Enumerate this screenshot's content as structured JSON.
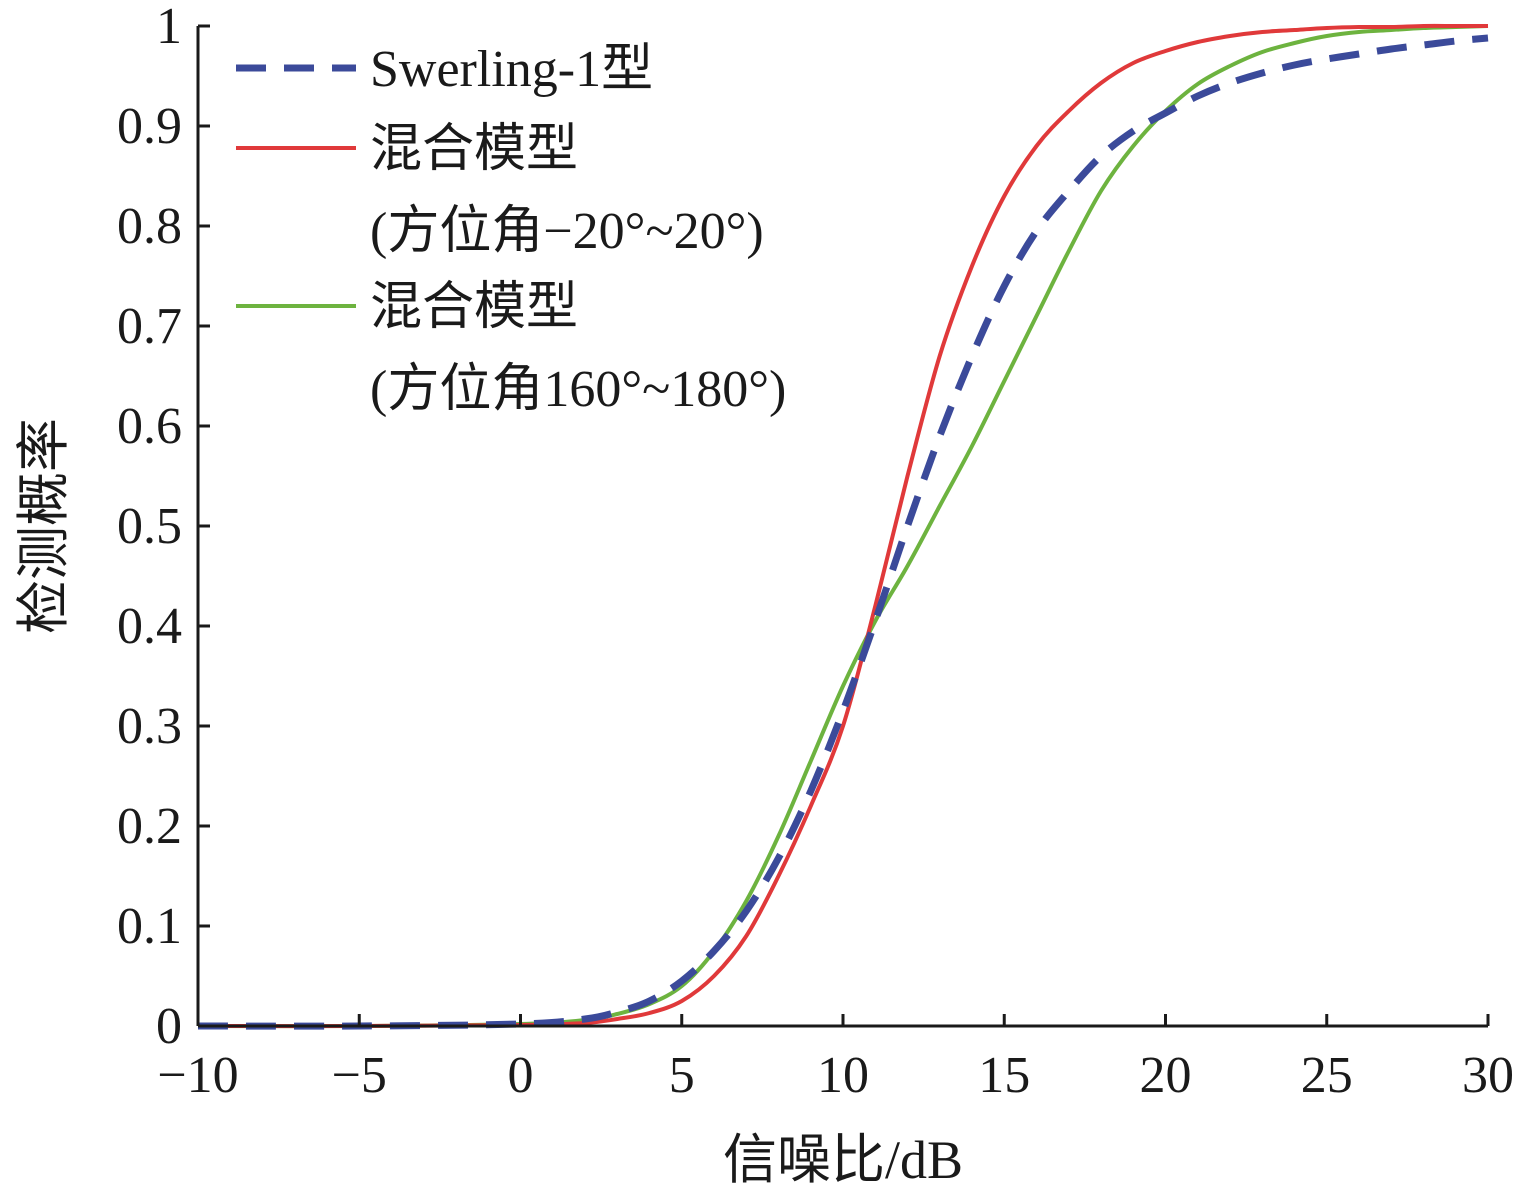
{
  "chart_data": {
    "type": "line",
    "title": "",
    "xlabel": "信噪比/dB",
    "ylabel": "检测概率",
    "xlim": [
      -10,
      30
    ],
    "ylim": [
      0,
      1
    ],
    "x_ticks": [
      -10,
      -5,
      0,
      5,
      10,
      15,
      20,
      25,
      30
    ],
    "x_tick_labels": [
      "−10",
      "−5",
      "0",
      "5",
      "10",
      "15",
      "20",
      "25",
      "30"
    ],
    "y_ticks": [
      0,
      0.1,
      0.2,
      0.3,
      0.4,
      0.5,
      0.6,
      0.7,
      0.8,
      0.9,
      1
    ],
    "y_tick_labels": [
      "0",
      "0.1",
      "0.2",
      "0.3",
      "0.4",
      "0.5",
      "0.6",
      "0.7",
      "0.8",
      "0.9",
      "1"
    ],
    "grid": false,
    "legend_position": "top-left",
    "series": [
      {
        "name": "Swerling-1型",
        "color": "#3b4a9a",
        "dash": "dashed",
        "x": [
          -10,
          -5,
          0,
          2,
          3,
          4,
          5,
          6,
          7,
          8,
          9,
          10,
          11,
          12,
          13,
          14,
          15,
          16,
          17,
          18,
          19,
          20,
          21,
          22,
          23,
          24,
          25,
          26,
          27,
          28,
          29,
          30
        ],
        "y": [
          0.0,
          0.0,
          0.002,
          0.007,
          0.014,
          0.025,
          0.045,
          0.075,
          0.115,
          0.168,
          0.235,
          0.315,
          0.405,
          0.5,
          0.59,
          0.67,
          0.74,
          0.795,
          0.835,
          0.87,
          0.895,
          0.913,
          0.93,
          0.943,
          0.953,
          0.961,
          0.967,
          0.972,
          0.977,
          0.981,
          0.985,
          0.988
        ]
      },
      {
        "name": "混合模型\n(方位角−20°~20°)",
        "name_lines": [
          "混合模型",
          "(方位角−20°~20°)"
        ],
        "color": "#e0393a",
        "dash": "solid",
        "x": [
          -10,
          -5,
          0,
          2,
          3,
          4,
          5,
          6,
          7,
          8,
          9,
          10,
          11,
          12,
          13,
          14,
          15,
          16,
          17,
          18,
          19,
          20,
          21,
          22,
          23,
          24,
          25,
          26,
          27,
          28,
          29,
          30
        ],
        "y": [
          0.0,
          0.0,
          0.001,
          0.003,
          0.007,
          0.013,
          0.025,
          0.05,
          0.09,
          0.15,
          0.22,
          0.3,
          0.42,
          0.55,
          0.67,
          0.76,
          0.83,
          0.88,
          0.915,
          0.943,
          0.963,
          0.975,
          0.984,
          0.99,
          0.994,
          0.996,
          0.998,
          0.999,
          0.999,
          1.0,
          1.0,
          1.0
        ]
      },
      {
        "name": "混合模型\n(方位角160°~180°)",
        "name_lines": [
          "混合模型",
          "(方位角160°~180°)"
        ],
        "color": "#6db33f",
        "dash": "solid",
        "x": [
          -10,
          -5,
          0,
          2,
          3,
          4,
          5,
          6,
          7,
          8,
          9,
          10,
          11,
          12,
          13,
          14,
          15,
          16,
          17,
          18,
          19,
          20,
          21,
          22,
          23,
          24,
          25,
          26,
          27,
          28,
          29,
          30
        ],
        "y": [
          0.0,
          0.0,
          0.002,
          0.006,
          0.012,
          0.022,
          0.04,
          0.075,
          0.125,
          0.19,
          0.265,
          0.34,
          0.405,
          0.46,
          0.52,
          0.58,
          0.645,
          0.71,
          0.775,
          0.835,
          0.88,
          0.915,
          0.942,
          0.96,
          0.974,
          0.983,
          0.99,
          0.994,
          0.996,
          0.998,
          0.999,
          1.0
        ]
      }
    ]
  }
}
